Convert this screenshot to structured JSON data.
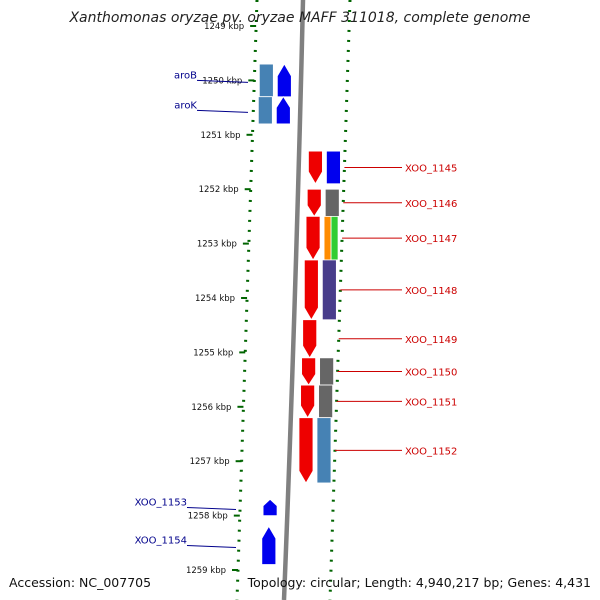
{
  "title": "Xanthomonas oryzae pv. oryzae MAFF 311018, complete genome",
  "accession": "Accession: NC_007705",
  "topology": "Topology: circular; Length: 4,940,217 bp; Genes: 4,431",
  "kbp_ticks": [
    "1249 kbp",
    "1250 kbp",
    "1251 kbp",
    "1252 kbp",
    "1253 kbp",
    "1254 kbp",
    "1255 kbp",
    "1256 kbp",
    "1257 kbp",
    "1258 kbp",
    "1259 kbp"
  ],
  "reverse_genes": [
    {
      "label": "aroB",
      "start_kbp": 1249.7,
      "end_kbp": 1250.3,
      "color": "#0000ee"
    },
    {
      "label": "aroK",
      "start_kbp": 1250.3,
      "end_kbp": 1250.8,
      "color": "#0000ee"
    },
    {
      "label": "XOO_1153",
      "start_kbp": 1257.7,
      "end_kbp": 1258.0,
      "color": "#0000ee"
    },
    {
      "label": "XOO_1154",
      "start_kbp": 1258.2,
      "end_kbp": 1258.9,
      "color": "#0000ee"
    }
  ],
  "forward_genes": [
    {
      "label": "XOO_1145",
      "start_kbp": 1251.3,
      "end_kbp": 1251.9,
      "color": "#ee0000"
    },
    {
      "label": "XOO_1146",
      "start_kbp": 1252.0,
      "end_kbp": 1252.5,
      "color": "#ee0000"
    },
    {
      "label": "XOO_1147",
      "start_kbp": 1252.5,
      "end_kbp": 1253.3,
      "color": "#ee0000"
    },
    {
      "label": "XOO_1148",
      "start_kbp": 1253.3,
      "end_kbp": 1254.4,
      "color": "#ee0000"
    },
    {
      "label": "XOO_1149",
      "start_kbp": 1254.4,
      "end_kbp": 1255.1,
      "color": "#ee0000"
    },
    {
      "label": "XOO_1150",
      "start_kbp": 1255.1,
      "end_kbp": 1255.6,
      "color": "#ee0000"
    },
    {
      "label": "XOO_1151",
      "start_kbp": 1255.6,
      "end_kbp": 1256.2,
      "color": "#ee0000"
    },
    {
      "label": "XOO_1152",
      "start_kbp": 1256.2,
      "end_kbp": 1257.4,
      "color": "#ee0000"
    }
  ],
  "cog_colors": {
    "reverse": [
      "#4682b4",
      "#4682b4"
    ],
    "forward": [
      "#0000ee",
      "#666666",
      "#ff8c00",
      "#483d8b",
      "#666666",
      "#666666",
      "#4682b4"
    ],
    "accent_green": "#32cd32"
  },
  "label_colors": {
    "reverse": "#00008b",
    "forward": "#cc0000"
  },
  "track_colors": {
    "backbone": "#808080",
    "ticks": "#006400"
  }
}
